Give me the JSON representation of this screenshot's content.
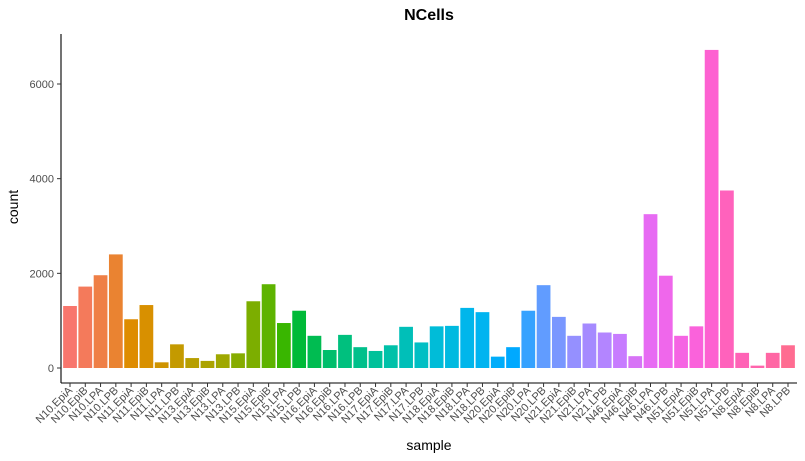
{
  "chart_data": {
    "type": "bar",
    "title": "NCells",
    "xlabel": "sample",
    "ylabel": "count",
    "ylim": [
      0,
      7000
    ],
    "yticks": [
      0,
      2000,
      4000,
      6000
    ],
    "grid": false,
    "legend": "none",
    "categories": [
      "N10.EpiA",
      "N10.EpiB",
      "N10.LPA",
      "N10.LPB",
      "N11.EpiA",
      "N11.EpiB",
      "N11.LPA",
      "N11.LPB",
      "N13.EpiA",
      "N13.EpiB",
      "N13.LPA",
      "N13.LPB",
      "N15.EpiA",
      "N15.EpiB",
      "N15.LPA",
      "N15.LPB",
      "N16.EpiA",
      "N16.EpiB",
      "N16.LPA",
      "N16.LPB",
      "N17.EpiA",
      "N17.EpiB",
      "N17.LPA",
      "N17.LPB",
      "N18.EpiA",
      "N18.EpiB",
      "N18.LPA",
      "N18.LPB",
      "N20.EpiA",
      "N20.EpiB",
      "N20.LPA",
      "N20.LPB",
      "N21.EpiA",
      "N21.EpiB",
      "N21.LPA",
      "N21.LPB",
      "N46.EpiA",
      "N46.EpiB",
      "N46.LPA",
      "N46.LPB",
      "N51.EpiA",
      "N51.EpiB",
      "N51.LPA",
      "N51.LPB",
      "N8.EpiA",
      "N8.EpiB",
      "N8.LPA",
      "N8.LPB"
    ],
    "values": [
      1310,
      1720,
      1960,
      2400,
      1030,
      1330,
      120,
      500,
      210,
      150,
      290,
      310,
      1410,
      1770,
      950,
      1210,
      680,
      380,
      700,
      440,
      360,
      480,
      870,
      540,
      880,
      890,
      1270,
      1180,
      240,
      440,
      1210,
      1750,
      1080,
      680,
      940,
      750,
      720,
      250,
      3250,
      1950,
      680,
      880,
      6720,
      3750,
      320,
      50,
      320,
      480
    ],
    "colors": [
      "#F8766D",
      "#F47A5B",
      "#EF7F46",
      "#EA8331",
      "#DE8C00",
      "#D89000",
      "#CF9400",
      "#C49A00",
      "#B79F00",
      "#ABA300",
      "#9FA800",
      "#86AC00",
      "#7CAE00",
      "#5EB300",
      "#39B600",
      "#00BA38",
      "#00BC51",
      "#00BE6C",
      "#00C07E",
      "#00C08B",
      "#00C19A",
      "#00C1A9",
      "#00BFB8",
      "#00BFC4",
      "#00BCD8",
      "#00BAE0",
      "#00B6EB",
      "#00B4F0",
      "#00ADFA",
      "#00A9FF",
      "#35A2FF",
      "#619CFF",
      "#7997FF",
      "#9590FF",
      "#A58AFF",
      "#B385FF",
      "#C77CFF",
      "#D773F6",
      "#E76BF3",
      "#EF67EB",
      "#F564E3",
      "#FA62DB",
      "#FD61D1",
      "#FF62BC",
      "#FF63B6",
      "#FF65AC",
      "#FF67A4",
      "#FF6C91"
    ]
  }
}
